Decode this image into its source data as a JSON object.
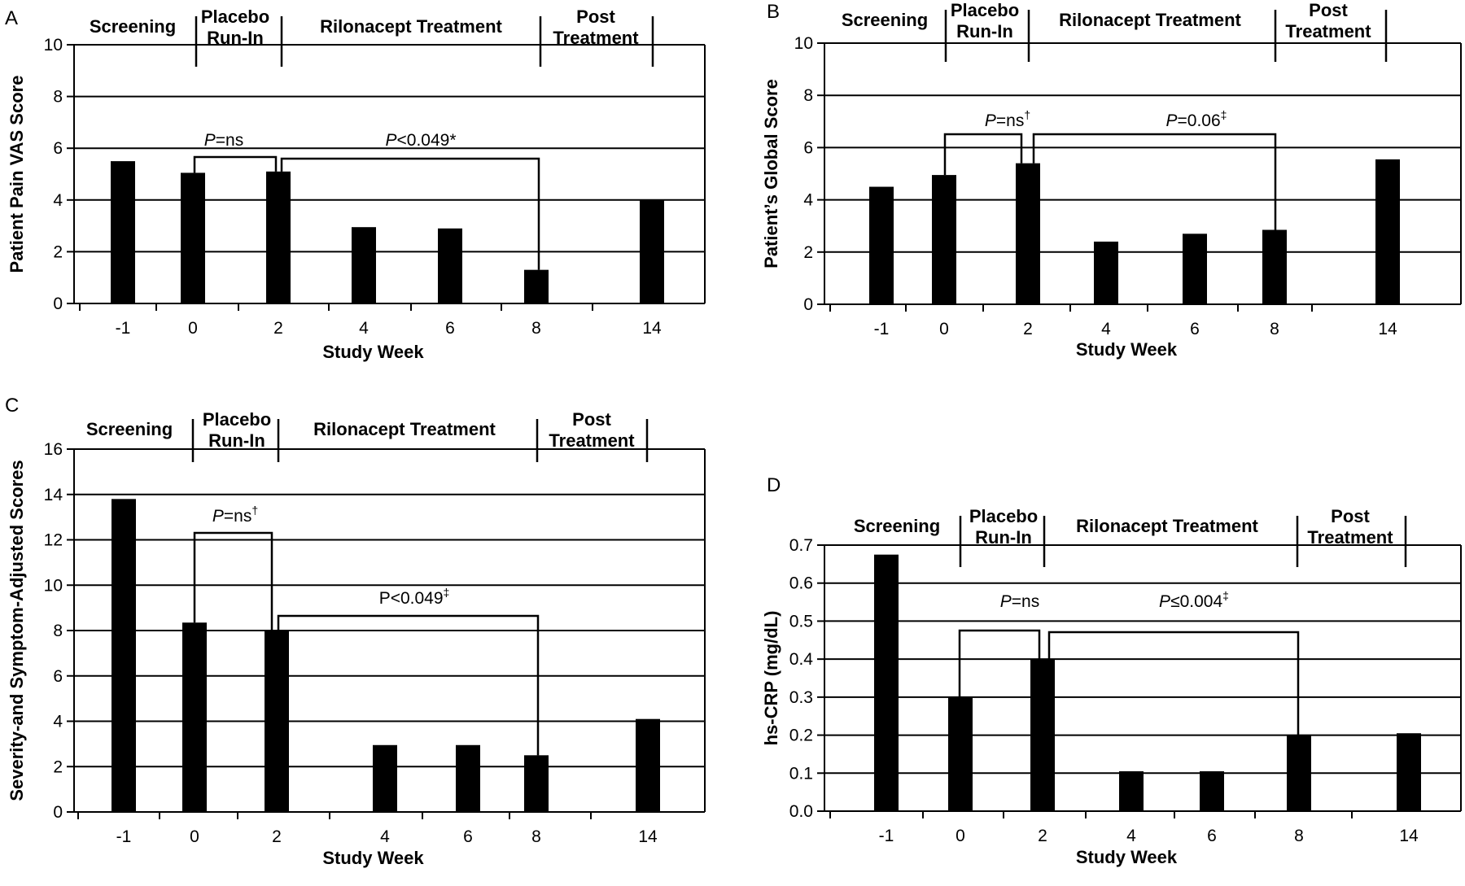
{
  "chart_data": [
    {
      "panel_label": "A",
      "type": "bar",
      "categories": [
        "-1",
        "0",
        "2",
        "4",
        "6",
        "8",
        "14"
      ],
      "values": [
        5.5,
        5.05,
        5.1,
        2.95,
        2.9,
        1.3,
        4.0
      ],
      "ylabel": "Patient Pain VAS Score",
      "xlabel": "Study Week",
      "ylim": [
        0,
        10
      ],
      "yticks": [
        "0",
        "2",
        "4",
        "6",
        "8",
        "10"
      ],
      "grid": true,
      "phases": [
        {
          "label": [
            "Screening"
          ]
        },
        {
          "label": [
            "Placebo",
            "Run-In"
          ]
        },
        {
          "label": [
            "Rilonacept Treatment"
          ]
        },
        {
          "label": [
            "Post",
            "Treatment"
          ]
        }
      ],
      "annotations": [
        {
          "italic": "P",
          "text": "=ns",
          "sup": ""
        },
        {
          "italic": "P",
          "text": "<0.049*",
          "sup": ""
        }
      ]
    },
    {
      "panel_label": "B",
      "type": "bar",
      "categories": [
        "-1",
        "0",
        "2",
        "4",
        "6",
        "8",
        "14"
      ],
      "values": [
        4.5,
        4.95,
        5.4,
        2.4,
        2.7,
        2.85,
        5.55
      ],
      "ylabel": "Patient’s Global Score",
      "xlabel": "Study Week",
      "ylim": [
        0,
        10
      ],
      "yticks": [
        "0",
        "2",
        "4",
        "6",
        "8",
        "10"
      ],
      "grid": true,
      "phases": [
        {
          "label": [
            "Screening"
          ]
        },
        {
          "label": [
            "Placebo",
            "Run-In"
          ]
        },
        {
          "label": [
            "Rilonacept Treatment"
          ]
        },
        {
          "label": [
            "Post",
            "Treatment"
          ]
        }
      ],
      "annotations": [
        {
          "italic": "P",
          "text": "=ns",
          "sup": "†"
        },
        {
          "italic": "P",
          "text": "=0.06",
          "sup": "‡"
        }
      ]
    },
    {
      "panel_label": "C",
      "type": "bar",
      "categories": [
        "-1",
        "0",
        "2",
        "4",
        "6",
        "8",
        "14"
      ],
      "values": [
        13.8,
        8.35,
        8.0,
        2.95,
        2.95,
        2.5,
        4.1
      ],
      "ylabel": "Severity-and Symptom-Adjusted Scores",
      "xlabel": "Study Week",
      "ylim": [
        0,
        16
      ],
      "yticks": [
        "0",
        "2",
        "4",
        "6",
        "8",
        "10",
        "12",
        "14",
        "16"
      ],
      "grid": true,
      "phases": [
        {
          "label": [
            "Screening"
          ]
        },
        {
          "label": [
            "Placebo",
            "Run-In"
          ]
        },
        {
          "label": [
            "Rilonacept Treatment"
          ]
        },
        {
          "label": [
            "Post",
            "Treatment"
          ]
        }
      ],
      "annotations": [
        {
          "italic": "P",
          "text": "=ns",
          "sup": "†"
        },
        {
          "italic": "",
          "text": "P<0.049",
          "sup": "‡"
        }
      ]
    },
    {
      "panel_label": "D",
      "type": "bar",
      "categories": [
        "-1",
        "0",
        "2",
        "4",
        "6",
        "8",
        "14"
      ],
      "values": [
        0.675,
        0.3,
        0.4,
        0.105,
        0.105,
        0.2,
        0.205
      ],
      "ylabel": "hs-CRP (mg/dL)",
      "xlabel": "Study Week",
      "ylim": [
        0,
        0.7
      ],
      "yticks": [
        "0.0",
        "0.1",
        "0.2",
        "0.3",
        "0.4",
        "0.5",
        "0.6",
        "0.7"
      ],
      "grid": true,
      "phases": [
        {
          "label": [
            "Screening"
          ]
        },
        {
          "label": [
            "Placebo",
            "Run-In"
          ]
        },
        {
          "label": [
            "Rilonacept Treatment"
          ]
        },
        {
          "label": [
            "Post",
            "Treatment"
          ]
        }
      ],
      "annotations": [
        {
          "italic": "P",
          "text": "=ns",
          "sup": ""
        },
        {
          "italic": "P",
          "text": "≤0.004",
          "sup": "‡"
        }
      ]
    }
  ]
}
